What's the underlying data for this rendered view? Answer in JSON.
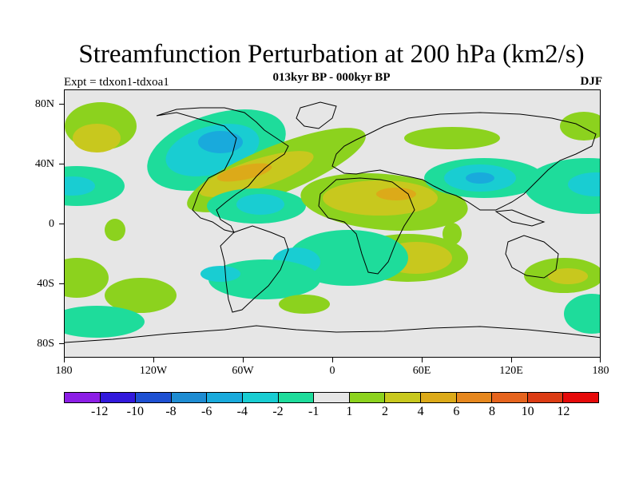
{
  "title": "Streamfunction Perturbation at 200 hPa (km2/s)",
  "subtitle": "013kyr BP - 000kyr BP",
  "experiment_label": "Expt = tdxon1-tdxoa1",
  "season": "DJF",
  "lat_labels": [
    "80N",
    "40N",
    "0",
    "40S",
    "80S"
  ],
  "lon_labels": [
    "180",
    "120W",
    "60W",
    "0",
    "60E",
    "120E",
    "180"
  ],
  "colorbar": {
    "labels": [
      "-12",
      "-10",
      "-8",
      "-6",
      "-4",
      "-2",
      "-1",
      "1",
      "2",
      "4",
      "6",
      "8",
      "10",
      "12"
    ],
    "colors": [
      "#8c1ee6",
      "#3219dc",
      "#1e50d2",
      "#1e8cd2",
      "#19aadc",
      "#19cdd2",
      "#1edc9b",
      "#e6e6e6",
      "#8cd21e",
      "#c8c81e",
      "#dcaa19",
      "#e6871e",
      "#e6641e",
      "#dc3c14",
      "#e60a0a"
    ]
  },
  "chart_data": {
    "type": "filled-contour-map",
    "variable": "200 hPa streamfunction perturbation",
    "units": "km2/s",
    "levels": [
      -12,
      -10,
      -8,
      -6,
      -4,
      -2,
      -1,
      1,
      2,
      4,
      6,
      8,
      10,
      12
    ],
    "lon_range": [
      -180,
      180
    ],
    "lat_range": [
      -90,
      90
    ]
  }
}
